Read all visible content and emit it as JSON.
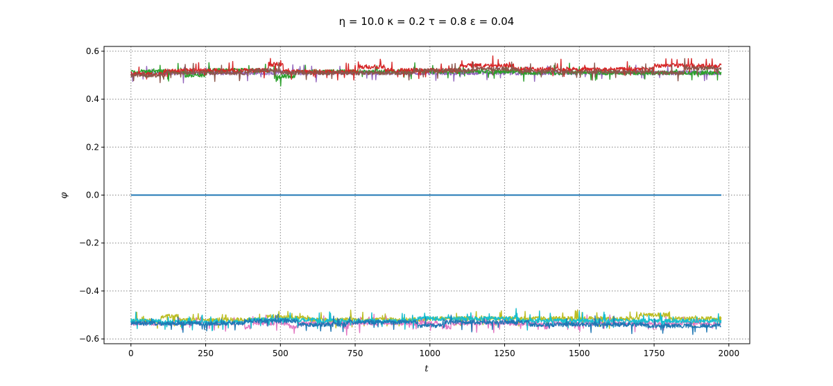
{
  "chart_data": {
    "type": "line",
    "title": "η = 10.0 κ = 0.2 τ = 0.8 ε = 0.04",
    "xlabel": "t",
    "ylabel": "φ",
    "xlim": [
      -90,
      2070
    ],
    "ylim": [
      -0.62,
      0.62
    ],
    "xticks": [
      0,
      250,
      500,
      750,
      1000,
      1250,
      1500,
      1750,
      2000
    ],
    "xtick_labels": [
      "0",
      "250",
      "500",
      "750",
      "1000",
      "1250",
      "1500",
      "1750",
      "2000"
    ],
    "yticks": [
      -0.6,
      -0.4,
      -0.2,
      0.0,
      0.2,
      0.4,
      0.6
    ],
    "ytick_labels": [
      "−0.6",
      "−0.4",
      "−0.2",
      "0.0",
      "0.2",
      "0.4",
      "0.6"
    ],
    "grid": true,
    "grid_style": "dotted",
    "legend": "none",
    "series": [
      {
        "color": "#9467bd",
        "x": [
          0,
          25,
          25,
          1975
        ],
        "values": [
          0.505,
          0.505,
          0.51,
          0.51
        ]
      },
      {
        "color": "#2ca02c",
        "x": [
          0,
          180,
          180,
          250,
          250,
          480,
          480,
          550,
          550,
          1300,
          1300,
          1975
        ],
        "values": [
          0.515,
          0.515,
          0.5,
          0.5,
          0.52,
          0.52,
          0.495,
          0.495,
          0.515,
          0.515,
          0.51,
          0.51
        ]
      },
      {
        "color": "#d62728",
        "x": [
          0,
          110,
          110,
          460,
          460,
          510,
          510,
          760,
          760,
          850,
          850,
          1100,
          1100,
          1280,
          1280,
          1750,
          1750,
          1975
        ],
        "values": [
          0.505,
          0.505,
          0.52,
          0.52,
          0.545,
          0.545,
          0.515,
          0.515,
          0.535,
          0.535,
          0.52,
          0.52,
          0.54,
          0.54,
          0.525,
          0.525,
          0.54,
          0.54
        ]
      },
      {
        "color": "#8c564b",
        "x": [
          0,
          110,
          110,
          390,
          390,
          500,
          500,
          950,
          950,
          1150,
          1150,
          1300,
          1300,
          1700,
          1700,
          1850,
          1850,
          1975
        ],
        "values": [
          0.5,
          0.5,
          0.51,
          0.51,
          0.52,
          0.52,
          0.51,
          0.51,
          0.52,
          0.52,
          0.525,
          0.525,
          0.515,
          0.515,
          0.51,
          0.51,
          0.53,
          0.53
        ]
      },
      {
        "color": "#1f77b4",
        "x": [
          0,
          1975
        ],
        "values": [
          0.0,
          0.0
        ]
      },
      {
        "color": "#bcbd22",
        "x": [
          0,
          100,
          100,
          160,
          160,
          450,
          450,
          600,
          600,
          1000,
          1000,
          1700,
          1700,
          1800,
          1800,
          1975
        ],
        "values": [
          -0.525,
          -0.525,
          -0.505,
          -0.505,
          -0.52,
          -0.52,
          -0.51,
          -0.51,
          -0.52,
          -0.52,
          -0.515,
          -0.515,
          -0.5,
          -0.5,
          -0.515,
          -0.515
        ]
      },
      {
        "color": "#e377c2",
        "x": [
          0,
          380,
          380,
          400,
          400,
          530,
          530,
          560,
          560,
          710,
          710,
          730,
          730,
          1040,
          1040,
          1070,
          1070,
          1380,
          1380,
          1400,
          1400,
          1975
        ],
        "values": [
          -0.535,
          -0.535,
          -0.55,
          -0.55,
          -0.535,
          -0.535,
          -0.55,
          -0.55,
          -0.535,
          -0.535,
          -0.55,
          -0.55,
          -0.535,
          -0.535,
          -0.55,
          -0.55,
          -0.535,
          -0.535,
          -0.55,
          -0.55,
          -0.535,
          -0.535
        ]
      },
      {
        "color": "#17becf",
        "x": [
          0,
          100,
          100,
          380,
          380,
          620,
          620,
          960,
          960,
          1300,
          1300,
          1975
        ],
        "values": [
          -0.525,
          -0.525,
          -0.53,
          -0.53,
          -0.52,
          -0.52,
          -0.525,
          -0.525,
          -0.515,
          -0.515,
          -0.525,
          -0.525
        ]
      },
      {
        "color": "#1f77b4",
        "x": [
          0,
          380,
          380,
          560,
          560,
          720,
          720,
          960,
          960,
          1050,
          1050,
          1330,
          1330,
          1720,
          1720,
          1975
        ],
        "values": [
          -0.535,
          -0.535,
          -0.525,
          -0.525,
          -0.54,
          -0.54,
          -0.53,
          -0.53,
          -0.545,
          -0.545,
          -0.53,
          -0.53,
          -0.54,
          -0.54,
          -0.545,
          -0.545
        ]
      }
    ]
  }
}
